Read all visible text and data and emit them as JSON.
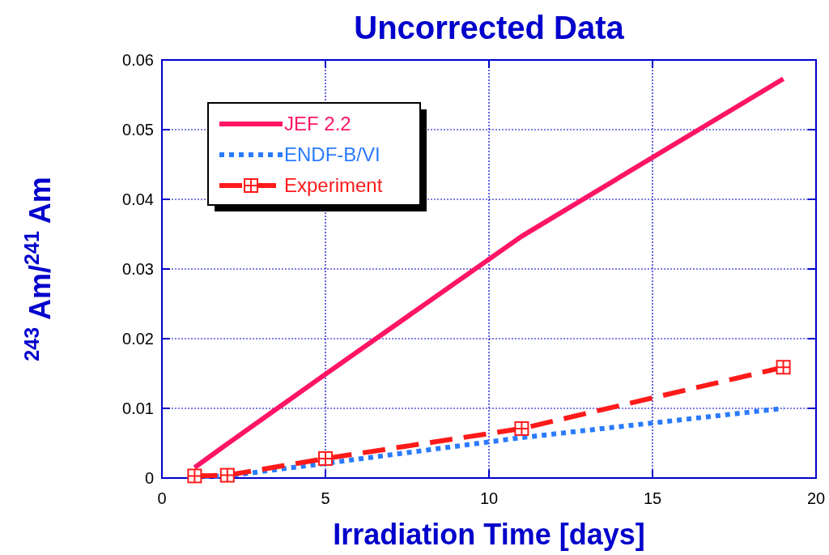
{
  "chart_data": {
    "type": "line",
    "title": "Uncorrected Data",
    "xlabel": "Irradiation Time [days]",
    "ylabel": "$^{243}$ Am/$^{241}$ Am",
    "x": [
      1,
      2,
      5,
      11,
      19
    ],
    "series": [
      {
        "name": "JEF 2.2",
        "color": "#ff1466",
        "values": [
          0.0015,
          0.0049,
          0.0149,
          0.0347,
          0.0573
        ],
        "line_style": "solid",
        "marker": "none"
      },
      {
        "name": "ENDF-B/VI",
        "color": "#2a7bff",
        "values": [
          0.0002,
          0.0003,
          0.0021,
          0.0058,
          0.01
        ],
        "line_style": "dotted",
        "marker": "none"
      },
      {
        "name": "Experiment",
        "color": "#ff1a1a",
        "values": [
          0.0003,
          0.0004,
          0.0028,
          0.0071,
          0.0159
        ],
        "line_style": "dashed",
        "marker": "square"
      }
    ],
    "xlim": [
      0,
      20
    ],
    "xticks": [
      0,
      5,
      10,
      15,
      20
    ],
    "ylim": [
      0,
      0.06
    ],
    "yticks": [
      0,
      0.01,
      0.02,
      0.03,
      0.04,
      0.05,
      0.06
    ],
    "grid": true,
    "legend": "top left"
  }
}
